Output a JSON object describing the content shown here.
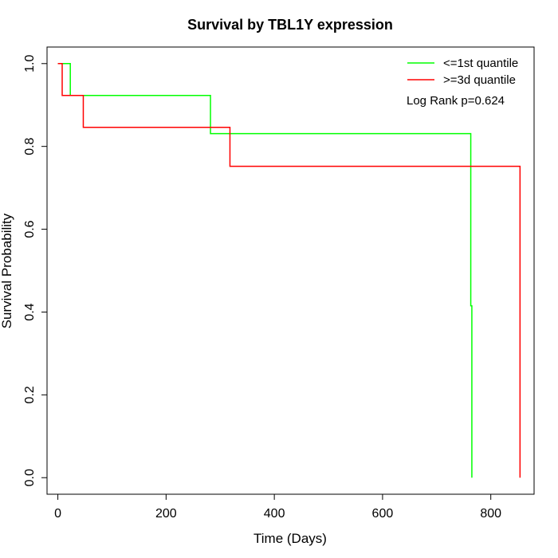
{
  "chart_data": {
    "type": "line",
    "title": "Survival by TBL1Y expression",
    "xlabel": "Time (Days)",
    "ylabel": "Survival Probability",
    "xlim": [
      -20,
      880
    ],
    "ylim": [
      -0.04,
      1.04
    ],
    "x_ticks": [
      0,
      200,
      400,
      600,
      800
    ],
    "y_ticks": [
      0.0,
      0.2,
      0.4,
      0.6,
      0.8,
      1.0
    ],
    "x_tick_labels": [
      "0",
      "200",
      "400",
      "600",
      "800"
    ],
    "y_tick_labels": [
      "0.0",
      "0.2",
      "0.4",
      "0.6",
      "0.8",
      "1.0"
    ],
    "grid": false,
    "legend_position": "top-right",
    "annotation": "Log Rank p=0.624",
    "series": [
      {
        "name": "<=1st quantile",
        "color": "#00ff00",
        "step": true,
        "x": [
          0,
          23,
          282,
          763,
          765
        ],
        "y": [
          1.0,
          0.923,
          0.831,
          0.415,
          0.0
        ]
      },
      {
        "name": ">=3d quantile",
        "color": "#ff0000",
        "step": true,
        "x": [
          0,
          8,
          47,
          318,
          854
        ],
        "y": [
          1.0,
          0.923,
          0.846,
          0.752,
          0.0
        ]
      }
    ]
  }
}
